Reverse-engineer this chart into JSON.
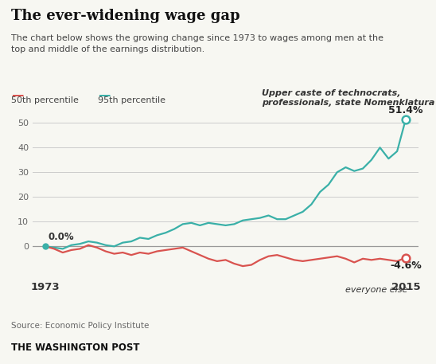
{
  "title": "The ever-widening wage gap",
  "subtitle": "The chart below shows the growing change since 1973 to wages among men at the\ntop and middle of the earnings distribution.",
  "legend_50": "50th percentile",
  "legend_95": "95th percentile",
  "color_50": "#d9534f",
  "color_95": "#3ab0a8",
  "source": "Source: Economic Policy Institute",
  "publisher": "THE WASHINGTON POST",
  "annotation_upper": "Upper caste of technocrats,\nprofessionals, state Nomenklatura",
  "annotation_everyone": "everyone else",
  "years": [
    1973,
    1974,
    1975,
    1976,
    1977,
    1978,
    1979,
    1980,
    1981,
    1982,
    1983,
    1984,
    1985,
    1986,
    1987,
    1988,
    1989,
    1990,
    1991,
    1992,
    1993,
    1994,
    1995,
    1996,
    1997,
    1998,
    1999,
    2000,
    2001,
    2002,
    2003,
    2004,
    2005,
    2006,
    2007,
    2008,
    2009,
    2010,
    2011,
    2012,
    2013,
    2014,
    2015
  ],
  "p95": [
    0.0,
    -0.5,
    -1.0,
    0.5,
    1.0,
    2.0,
    1.5,
    0.5,
    0.0,
    1.5,
    2.0,
    3.5,
    3.0,
    4.5,
    5.5,
    7.0,
    9.0,
    9.5,
    8.5,
    9.5,
    9.0,
    8.5,
    9.0,
    10.5,
    11.0,
    11.5,
    12.5,
    11.0,
    11.0,
    12.5,
    14.0,
    17.0,
    22.0,
    25.0,
    30.0,
    32.0,
    30.5,
    31.5,
    35.0,
    40.0,
    35.5,
    38.5,
    51.4
  ],
  "p50": [
    0.0,
    -1.0,
    -2.5,
    -1.5,
    -1.0,
    0.5,
    -0.5,
    -2.0,
    -3.0,
    -2.5,
    -3.5,
    -2.5,
    -3.0,
    -2.0,
    -1.5,
    -1.0,
    -0.5,
    -2.0,
    -3.5,
    -5.0,
    -6.0,
    -5.5,
    -7.0,
    -8.0,
    -7.5,
    -5.5,
    -4.0,
    -3.5,
    -4.5,
    -5.5,
    -6.0,
    -5.5,
    -5.0,
    -4.5,
    -4.0,
    -5.0,
    -6.5,
    -5.0,
    -5.5,
    -5.0,
    -5.5,
    -6.0,
    -4.6
  ],
  "ylim": [
    -13,
    57
  ],
  "yticks": [
    0,
    10,
    20,
    30,
    40,
    50
  ],
  "bg_color": "#f7f7f2",
  "plot_bg": "#f7f7f2",
  "grid_color": "#cccccc",
  "title_fontsize": 13,
  "subtitle_fontsize": 8,
  "legend_fontsize": 8,
  "tick_fontsize": 8,
  "annot_fontsize": 8
}
